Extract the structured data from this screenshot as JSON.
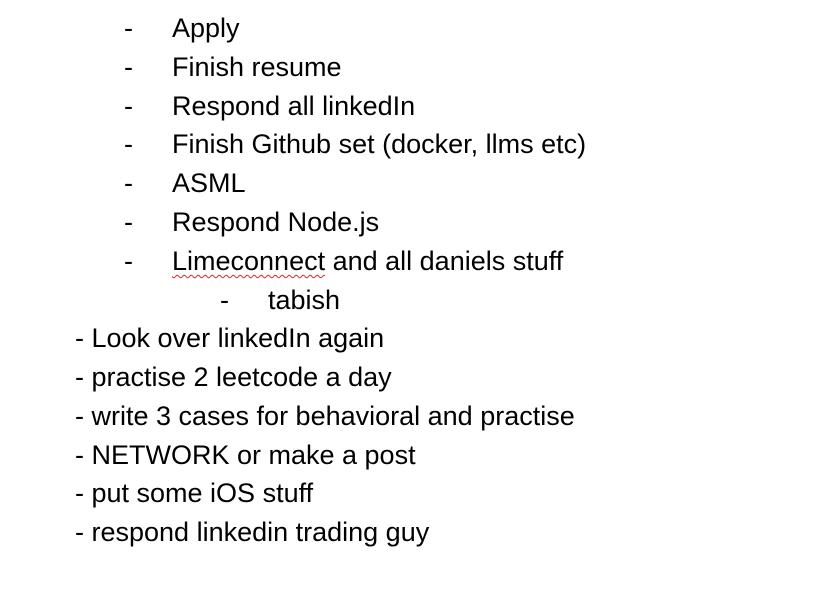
{
  "indented_items": [
    {
      "bullet": "-",
      "text": "Apply"
    },
    {
      "bullet": "-",
      "text": "Finish resume"
    },
    {
      "bullet": "-",
      "text": "Respond all linkedIn"
    },
    {
      "bullet": "-",
      "text": "Finish Github set (docker, llms etc)"
    },
    {
      "bullet": "-",
      "text": "ASML"
    },
    {
      "bullet": "-",
      "text": "Respond Node.js"
    },
    {
      "bullet": "-",
      "text_misspelled": "Limeconnect",
      "text_rest": " and all daniels stuff"
    }
  ],
  "sub_item": {
    "bullet": "-",
    "text": "tabish"
  },
  "plain_lines": [
    "- Look over linkedIn again",
    "- practise 2 leetcode a day",
    "- write 3 cases for behavioral and practise",
    "- NETWORK or make a post",
    "- put some iOS stuff",
    "- respond linkedin trading guy"
  ]
}
